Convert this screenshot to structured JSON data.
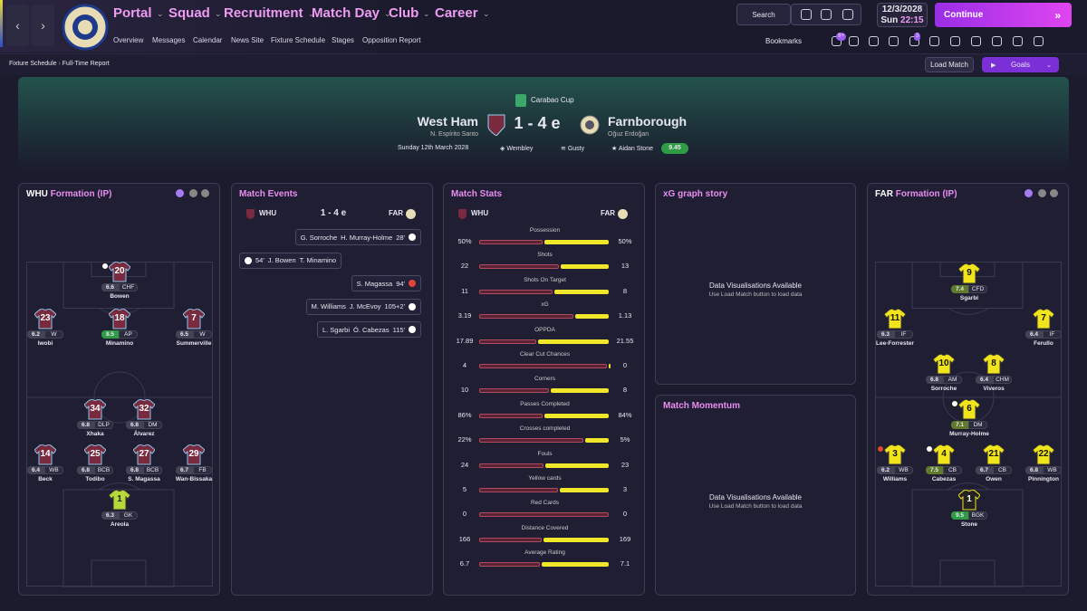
{
  "nav": {
    "menus": [
      "Portal",
      "Squad",
      "Recruitment",
      "Match Day",
      "Club",
      "Career"
    ],
    "submenu": [
      "Overview",
      "Messages",
      "Calendar",
      "News Site",
      "Fixture Schedule",
      "Stages",
      "Opposition Report"
    ],
    "search": "Search",
    "date": "12/3/2028",
    "day": "Sun",
    "time": "22:15",
    "continue": "Continue",
    "bookmarks": "Bookmarks",
    "badges": [
      "9+",
      "3"
    ]
  },
  "breadcrumb": [
    "Fixture Schedule",
    "Full-Time Report"
  ],
  "buttons": {
    "load_match": "Load Match",
    "goals": "Goals"
  },
  "match": {
    "competition": "Carabao Cup",
    "home": "West Ham",
    "score": "1 - 4 e",
    "away": "Farnborough",
    "home_manager": "N. Espírito Santo",
    "away_manager": "Oğuz Erdoğan",
    "date": "Sunday 12th March 2028",
    "stadium": "Wembley",
    "weather": "Gusty",
    "player_of_match": "Aidan Stone",
    "pom_rating": 9.45
  },
  "home_formation": {
    "team": "WHU",
    "title": "Formation (IP)",
    "players": [
      {
        "number": 20,
        "rating": 6.6,
        "position": "CHF",
        "name": "Bowen",
        "icon": "goal"
      },
      {
        "number": 23,
        "rating": 6.2,
        "position": "W",
        "name": "Iwobi"
      },
      {
        "number": 18,
        "rating": 8.5,
        "position": "AP",
        "name": "Minamino"
      },
      {
        "number": 7,
        "rating": 6.5,
        "position": "W",
        "name": "Summerville"
      },
      {
        "number": 34,
        "rating": 6.8,
        "position": "DLP",
        "name": "Xhaka"
      },
      {
        "number": 32,
        "rating": 6.8,
        "position": "DM",
        "name": "Álvarez"
      },
      {
        "number": 14,
        "rating": 6.4,
        "position": "WB",
        "name": "Beck"
      },
      {
        "number": 25,
        "rating": 6.8,
        "position": "BCB",
        "name": "Todibo"
      },
      {
        "number": 27,
        "rating": 6.8,
        "position": "BCB",
        "name": "S. Magassa"
      },
      {
        "number": 29,
        "rating": 6.7,
        "position": "FB",
        "name": "Wan-Bissaka"
      },
      {
        "number": 1,
        "rating": 6.3,
        "position": "GK",
        "name": "Areola",
        "keeper": true
      }
    ]
  },
  "match_events": {
    "title": "Match Events",
    "home": "WHU",
    "score": "1 - 4 e",
    "away": "FAR",
    "events": [
      {
        "side": "away",
        "type": "goal",
        "names": [
          "G. Sorroche",
          "H. Murray-Holme"
        ],
        "minute": "28'"
      },
      {
        "side": "home",
        "type": "goal",
        "names": [
          "J. Bowen",
          "T. Minamino"
        ],
        "minute": "54'"
      },
      {
        "side": "away",
        "type": "own_goal",
        "names": [
          "S. Magassa"
        ],
        "minute": "94'"
      },
      {
        "side": "away",
        "type": "goal",
        "names": [
          "M. Williams",
          "J. McEvoy"
        ],
        "minute": "105+2'"
      },
      {
        "side": "away",
        "type": "goal",
        "names": [
          "L. Sgarbi",
          "Ó. Cabezas"
        ],
        "minute": "115'"
      }
    ]
  },
  "match_stats": {
    "title": "Match Stats",
    "home": "WHU",
    "away": "FAR",
    "rows": [
      {
        "name": "Possession",
        "home": {
          "value": 50,
          "label": "50%"
        },
        "away": {
          "value": 50,
          "label": "50%"
        }
      },
      {
        "name": "Shots",
        "home": 22,
        "away": 13
      },
      {
        "name": "Shots On Target",
        "home": 11,
        "away": 8
      },
      {
        "name": "xG",
        "home": 3.19,
        "away": 1.13
      },
      {
        "name": "OPPDA",
        "home": 17.89,
        "away": 21.55
      },
      {
        "name": "Clear Cut Chances",
        "home": 4,
        "away": 0
      },
      {
        "name": "Corners",
        "home": 10,
        "away": 8
      },
      {
        "name": "Passes Completed",
        "home": {
          "value": 86,
          "label": "86%"
        },
        "away": {
          "value": 84,
          "label": "84%"
        }
      },
      {
        "name": "Crosses completed",
        "home": {
          "value": 22,
          "label": "22%"
        },
        "away": {
          "value": 5,
          "label": "5%"
        }
      },
      {
        "name": "Fouls",
        "home": 24,
        "away": 23
      },
      {
        "name": "Yellow cards",
        "home": 5,
        "away": 3
      },
      {
        "name": "Red Cards",
        "home": 0,
        "away": 0
      },
      {
        "name": "Distance Covered",
        "home": 166,
        "away": 169
      },
      {
        "name": "Average Rating",
        "home": 6.7,
        "away": 7.1
      }
    ]
  },
  "xg_story": {
    "title": "xG graph story",
    "message": "Data Visualisations Available",
    "hint": "Use Load Match button to load data"
  },
  "momentum": {
    "title": "Match Momentum",
    "message": "Data Visualisations Available",
    "hint": "Use Load Match button to load data"
  },
  "away_formation": {
    "team": "FAR",
    "title": "Formation (IP)",
    "players": [
      {
        "number": 9,
        "rating": 7.4,
        "position": "CFD",
        "name": "Sgarbi"
      },
      {
        "number": 11,
        "rating": 6.3,
        "position": "IF",
        "name": "Lee-Forrester"
      },
      {
        "number": 7,
        "rating": 6.4,
        "position": "IF",
        "name": "Ferullo"
      },
      {
        "number": 10,
        "rating": 6.8,
        "position": "AM",
        "name": "Sorroche"
      },
      {
        "number": 8,
        "rating": 6.4,
        "position": "CHM",
        "name": "Viveros"
      },
      {
        "number": 6,
        "rating": 7.1,
        "position": "DM",
        "name": "Murray-Holme",
        "icon": "goal"
      },
      {
        "number": 3,
        "rating": 6.2,
        "position": "WB",
        "name": "Williams",
        "icon": "injury"
      },
      {
        "number": 4,
        "rating": 7.5,
        "position": "CB",
        "name": "Cabezas",
        "icon": "goal"
      },
      {
        "number": 21,
        "rating": 6.7,
        "position": "CB",
        "name": "Owen"
      },
      {
        "number": 22,
        "rating": 6.8,
        "position": "WB",
        "name": "Pinnington"
      },
      {
        "number": 1,
        "rating": 9.5,
        "position": "BGK",
        "name": "Stone",
        "keeper": true
      }
    ]
  }
}
